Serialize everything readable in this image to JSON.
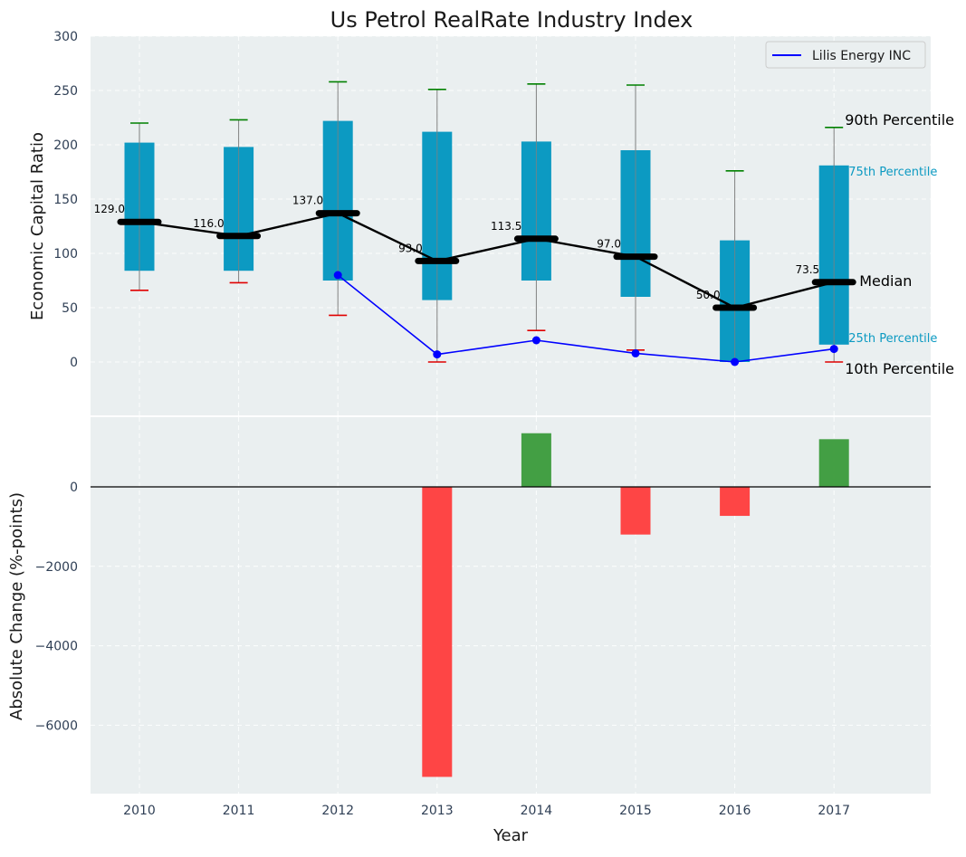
{
  "chart_data": [
    {
      "type": "box",
      "title": "Us Petrol RealRate Industry Index",
      "xlabel": "",
      "ylabel": "Economic Capital Ratio",
      "ylim": [
        -50,
        300
      ],
      "yticks": [
        0,
        50,
        100,
        150,
        200,
        250,
        300
      ],
      "categories": [
        "2010",
        "2011",
        "2012",
        "2013",
        "2014",
        "2015",
        "2016",
        "2017"
      ],
      "p10": [
        66,
        73,
        43,
        0,
        29,
        11,
        null,
        0
      ],
      "p25": [
        84,
        84,
        75,
        57,
        75,
        60,
        0,
        16
      ],
      "median": [
        129.0,
        116.0,
        137.0,
        93.0,
        113.5,
        97.0,
        50.0,
        73.5
      ],
      "median_labels": [
        "129.0",
        "116.0",
        "137.0",
        "93.0",
        "113.5",
        "97.0",
        "50.0",
        "73.5"
      ],
      "p75": [
        202,
        198,
        222,
        212,
        203,
        195,
        112,
        181
      ],
      "p90": [
        220,
        223,
        258,
        251,
        256,
        255,
        176,
        216
      ],
      "company_series": {
        "name": "Lilis Energy INC",
        "values": [
          null,
          null,
          80,
          7,
          20,
          8,
          0,
          12
        ]
      },
      "annotations": {
        "p90": "90th Percentile",
        "p75": "75th Percentile",
        "median": "Median",
        "p25": "25th Percentile",
        "p10": "10th Percentile"
      },
      "legend": "top-right",
      "grid": true
    },
    {
      "type": "bar",
      "xlabel": "Year",
      "ylabel": "Absolute Change (%-points)",
      "ylim": [
        -7800,
        1900
      ],
      "yticks": [
        0,
        -2000,
        -4000,
        -6000
      ],
      "ytick_labels": [
        "0",
        "−2000",
        "−4000",
        "−6000"
      ],
      "categories": [
        "2010",
        "2011",
        "2012",
        "2013",
        "2014",
        "2015",
        "2016",
        "2017"
      ],
      "values": [
        null,
        null,
        null,
        -7300,
        1350,
        -1200,
        -730,
        1200
      ],
      "colors": {
        "positive": "#3a9a3a",
        "negative": "#ff3b3b"
      },
      "grid": true
    }
  ],
  "colors": {
    "box_fill": "#0c9ac2",
    "panel_bg": "#eaeff0",
    "median_line": "#000000",
    "company_line": "#0000ff",
    "p90_cap": "#008000",
    "p10_cap": "#e00000",
    "whisker": "#808080"
  }
}
